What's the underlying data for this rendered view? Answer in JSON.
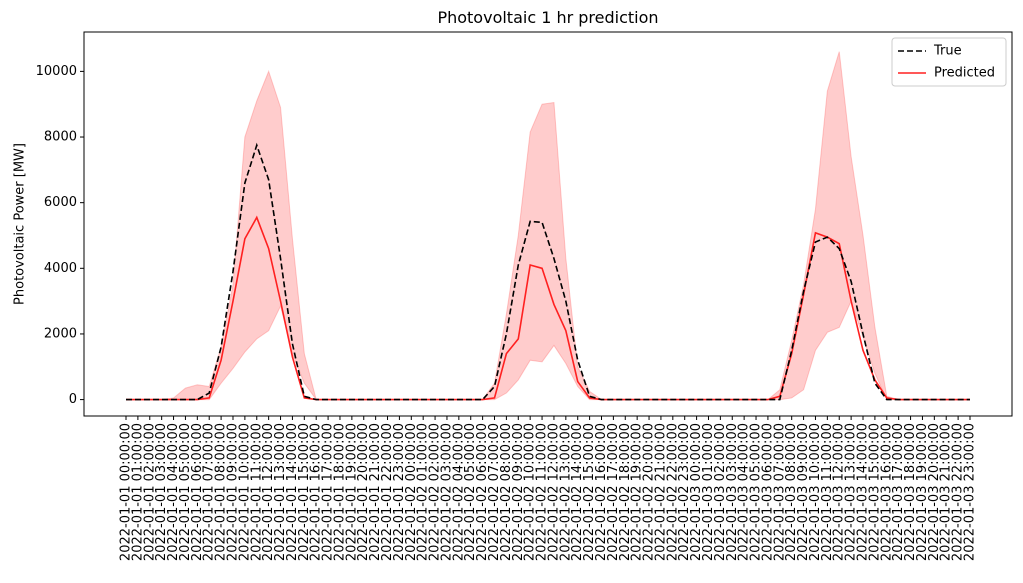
{
  "chart_data": {
    "type": "line",
    "title": "Photovoltaic 1 hr prediction",
    "xlabel": "",
    "ylabel": "Photovoltaic Power [MW]",
    "ylim": [
      -500,
      11200
    ],
    "y_ticks": [
      0,
      2000,
      4000,
      6000,
      8000,
      10000
    ],
    "x_tick_labels": [
      "2022-01-01 00:00:00",
      "2022-01-01 01:00:00",
      "2022-01-01 02:00:00",
      "2022-01-01 03:00:00",
      "2022-01-01 04:00:00",
      "2022-01-01 05:00:00",
      "2022-01-01 06:00:00",
      "2022-01-01 07:00:00",
      "2022-01-01 08:00:00",
      "2022-01-01 09:00:00",
      "2022-01-01 10:00:00",
      "2022-01-01 11:00:00",
      "2022-01-01 12:00:00",
      "2022-01-01 13:00:00",
      "2022-01-01 14:00:00",
      "2022-01-01 15:00:00",
      "2022-01-01 16:00:00",
      "2022-01-01 17:00:00",
      "2022-01-01 18:00:00",
      "2022-01-01 19:00:00",
      "2022-01-01 20:00:00",
      "2022-01-01 21:00:00",
      "2022-01-01 22:00:00",
      "2022-01-01 23:00:00",
      "2022-01-02 00:00:00",
      "2022-01-02 01:00:00",
      "2022-01-02 02:00:00",
      "2022-01-02 03:00:00",
      "2022-01-02 04:00:00",
      "2022-01-02 05:00:00",
      "2022-01-02 06:00:00",
      "2022-01-02 07:00:00",
      "2022-01-02 08:00:00",
      "2022-01-02 09:00:00",
      "2022-01-02 10:00:00",
      "2022-01-02 11:00:00",
      "2022-01-02 12:00:00",
      "2022-01-02 13:00:00",
      "2022-01-02 14:00:00",
      "2022-01-02 15:00:00",
      "2022-01-02 16:00:00",
      "2022-01-02 17:00:00",
      "2022-01-02 18:00:00",
      "2022-01-02 19:00:00",
      "2022-01-02 20:00:00",
      "2022-01-02 21:00:00",
      "2022-01-02 22:00:00",
      "2022-01-02 23:00:00",
      "2022-01-03 00:00:00",
      "2022-01-03 01:00:00",
      "2022-01-03 02:00:00",
      "2022-01-03 03:00:00",
      "2022-01-03 04:00:00",
      "2022-01-03 05:00:00",
      "2022-01-03 06:00:00",
      "2022-01-03 07:00:00",
      "2022-01-03 08:00:00",
      "2022-01-03 09:00:00",
      "2022-01-03 10:00:00",
      "2022-01-03 11:00:00",
      "2022-01-03 12:00:00",
      "2022-01-03 13:00:00",
      "2022-01-03 14:00:00",
      "2022-01-03 15:00:00",
      "2022-01-03 16:00:00",
      "2022-01-03 17:00:00",
      "2022-01-03 18:00:00",
      "2022-01-03 19:00:00",
      "2022-01-03 20:00:00",
      "2022-01-03 21:00:00",
      "2022-01-03 22:00:00",
      "2022-01-03 23:00:00"
    ],
    "series": [
      {
        "name": "True",
        "color": "#000000",
        "style": "dashed",
        "values": [
          0,
          0,
          0,
          0,
          0,
          0,
          0,
          200,
          1600,
          3900,
          6600,
          7750,
          6700,
          4300,
          1700,
          100,
          0,
          0,
          0,
          0,
          0,
          0,
          0,
          0,
          0,
          0,
          0,
          0,
          0,
          0,
          0,
          400,
          2000,
          4100,
          5430,
          5400,
          4300,
          3000,
          1200,
          100,
          0,
          0,
          0,
          0,
          0,
          0,
          0,
          0,
          0,
          0,
          0,
          0,
          0,
          0,
          0,
          0,
          1500,
          3300,
          4800,
          4950,
          4600,
          3600,
          2000,
          500,
          0,
          0,
          0,
          0,
          0,
          0,
          0,
          0
        ]
      },
      {
        "name": "Predicted",
        "color": "#ff2020",
        "style": "solid",
        "values": [
          0,
          0,
          0,
          0,
          0,
          0,
          0,
          50,
          1200,
          3000,
          4900,
          5550,
          4600,
          3000,
          1300,
          50,
          0,
          0,
          0,
          0,
          0,
          0,
          0,
          0,
          0,
          0,
          0,
          0,
          0,
          0,
          0,
          50,
          1400,
          1850,
          4100,
          4000,
          2900,
          2100,
          550,
          50,
          0,
          0,
          0,
          0,
          0,
          0,
          0,
          0,
          0,
          0,
          0,
          0,
          0,
          0,
          0,
          100,
          1400,
          3200,
          5080,
          4950,
          4750,
          3000,
          1500,
          600,
          50,
          0,
          0,
          0,
          0,
          0,
          0,
          0
        ]
      }
    ],
    "band": {
      "color": "#ff9999",
      "upper": [
        0,
        0,
        0,
        0,
        50,
        350,
        450,
        400,
        1600,
        3500,
        8000,
        9100,
        10000,
        8900,
        4900,
        1400,
        0,
        0,
        0,
        0,
        0,
        0,
        0,
        0,
        0,
        0,
        0,
        0,
        0,
        0,
        0,
        500,
        2600,
        5000,
        8150,
        9000,
        9050,
        4300,
        1000,
        250,
        0,
        0,
        0,
        0,
        0,
        0,
        0,
        0,
        0,
        0,
        0,
        0,
        0,
        0,
        0,
        300,
        1800,
        3500,
        5800,
        9400,
        10600,
        7400,
        5000,
        2200,
        100,
        0,
        0,
        0,
        0,
        0,
        0,
        0
      ],
      "lower": [
        0,
        0,
        0,
        0,
        0,
        0,
        0,
        0,
        500,
        950,
        1450,
        1850,
        2100,
        2850,
        1400,
        500,
        0,
        0,
        0,
        0,
        0,
        0,
        0,
        0,
        0,
        0,
        0,
        0,
        0,
        0,
        0,
        0,
        200,
        600,
        1200,
        1150,
        1650,
        1100,
        400,
        0,
        0,
        0,
        0,
        0,
        0,
        0,
        0,
        0,
        0,
        0,
        0,
        0,
        0,
        0,
        0,
        0,
        50,
        300,
        1500,
        2050,
        2200,
        3000,
        1900,
        800,
        0,
        0,
        0,
        0,
        0,
        0,
        0,
        0
      ]
    },
    "legend": {
      "placement": "top-right",
      "entries": [
        "True",
        "Predicted"
      ]
    },
    "grid": false
  }
}
